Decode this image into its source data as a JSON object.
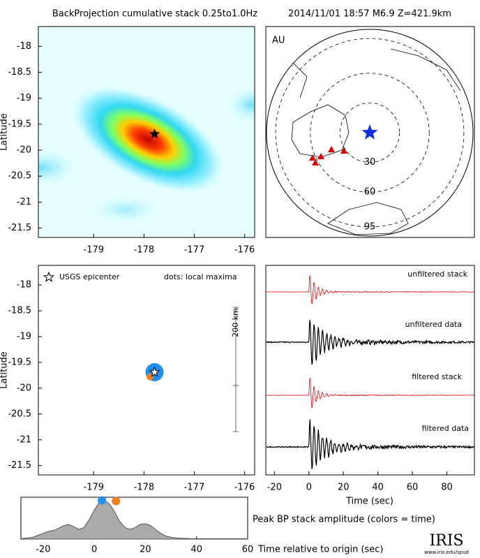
{
  "title": "BackProjection cumulative stack 0.25to1.0Hz",
  "event": "2014/11/01 18:57  M6.9  Z=421.9km",
  "chart_data": [
    {
      "type": "heatmap",
      "ylabel": "Latitude",
      "epicenter": {
        "x": -177.79,
        "y": -19.69
      },
      "xlim": [
        -180.1,
        -175.8
      ],
      "ylim": [
        -21.68,
        -17.62
      ],
      "xticks": [
        -179,
        -178,
        -177,
        -176
      ],
      "yticks": [
        -18,
        -18.5,
        -19,
        -19.5,
        -20,
        -20.5,
        -21,
        -21.5
      ]
    },
    {
      "type": "globe",
      "label": "AU",
      "rings": [
        30,
        60,
        95
      ]
    },
    {
      "type": "scatter",
      "ylabel": "Latitude",
      "legend_star": "USGS epicenter",
      "legend_dots": "dots: local maxima",
      "scale_label": "200 km",
      "epicenter": {
        "x": -177.79,
        "y": -19.69
      },
      "series": [
        {
          "color": "#1f8ff0",
          "x": [
            -177.79
          ],
          "y": [
            -19.69
          ]
        },
        {
          "color": "#f07f20",
          "x": [
            -177.88
          ],
          "y": [
            -19.78
          ]
        }
      ],
      "xlim": [
        -180.1,
        -175.8
      ],
      "ylim": [
        -21.68,
        -17.62
      ],
      "xticks": [
        -179,
        -178,
        -177,
        -176
      ],
      "yticks": [
        -18,
        -18.5,
        -19,
        -19.5,
        -20,
        -20.5,
        -21,
        -21.5
      ]
    },
    {
      "type": "waveform",
      "xlabel": "Time (sec)",
      "traces": [
        "unfiltered stack",
        "unfiltered data",
        "filtered stack",
        "filtered data"
      ],
      "xlim": [
        -25,
        96
      ],
      "xticks": [
        -20,
        0,
        20,
        40,
        60,
        80
      ]
    },
    {
      "type": "area",
      "ylabel": "Peak BP stack amplitude (colors = time)",
      "xlabel": "Time relative to origin (sec)",
      "x": [
        -28,
        -26,
        -24,
        -22,
        -20,
        -18,
        -16,
        -14,
        -12,
        -10,
        -8,
        -6,
        -4,
        -2,
        0,
        2,
        4,
        6,
        8,
        10,
        12,
        14,
        16,
        18,
        20,
        22,
        24,
        26,
        28,
        30,
        32,
        34,
        36,
        38,
        40,
        45,
        50,
        55,
        60
      ],
      "values": [
        0.02,
        0.03,
        0.05,
        0.1,
        0.15,
        0.2,
        0.22,
        0.28,
        0.35,
        0.38,
        0.32,
        0.25,
        0.3,
        0.5,
        0.75,
        0.95,
        1.0,
        0.9,
        0.7,
        0.45,
        0.3,
        0.25,
        0.3,
        0.38,
        0.4,
        0.35,
        0.25,
        0.15,
        0.08,
        0.05,
        0.03,
        0.02,
        0.02,
        0.01,
        0.01,
        0.01,
        0.01,
        0.01,
        0.01
      ],
      "points": [
        {
          "color": "#1f8ff0",
          "x": 3,
          "y": 1.0
        },
        {
          "color": "#f07f20",
          "x": 8.5,
          "y": 0.98
        }
      ],
      "xlim": [
        -28.7,
        60
      ],
      "ylim": [
        0,
        1.08
      ],
      "xticks": [
        -20,
        0,
        20,
        40,
        60
      ]
    },
    {
      "type": "logo",
      "label": "IRIS",
      "url": "www.iris.edu/spud"
    }
  ]
}
